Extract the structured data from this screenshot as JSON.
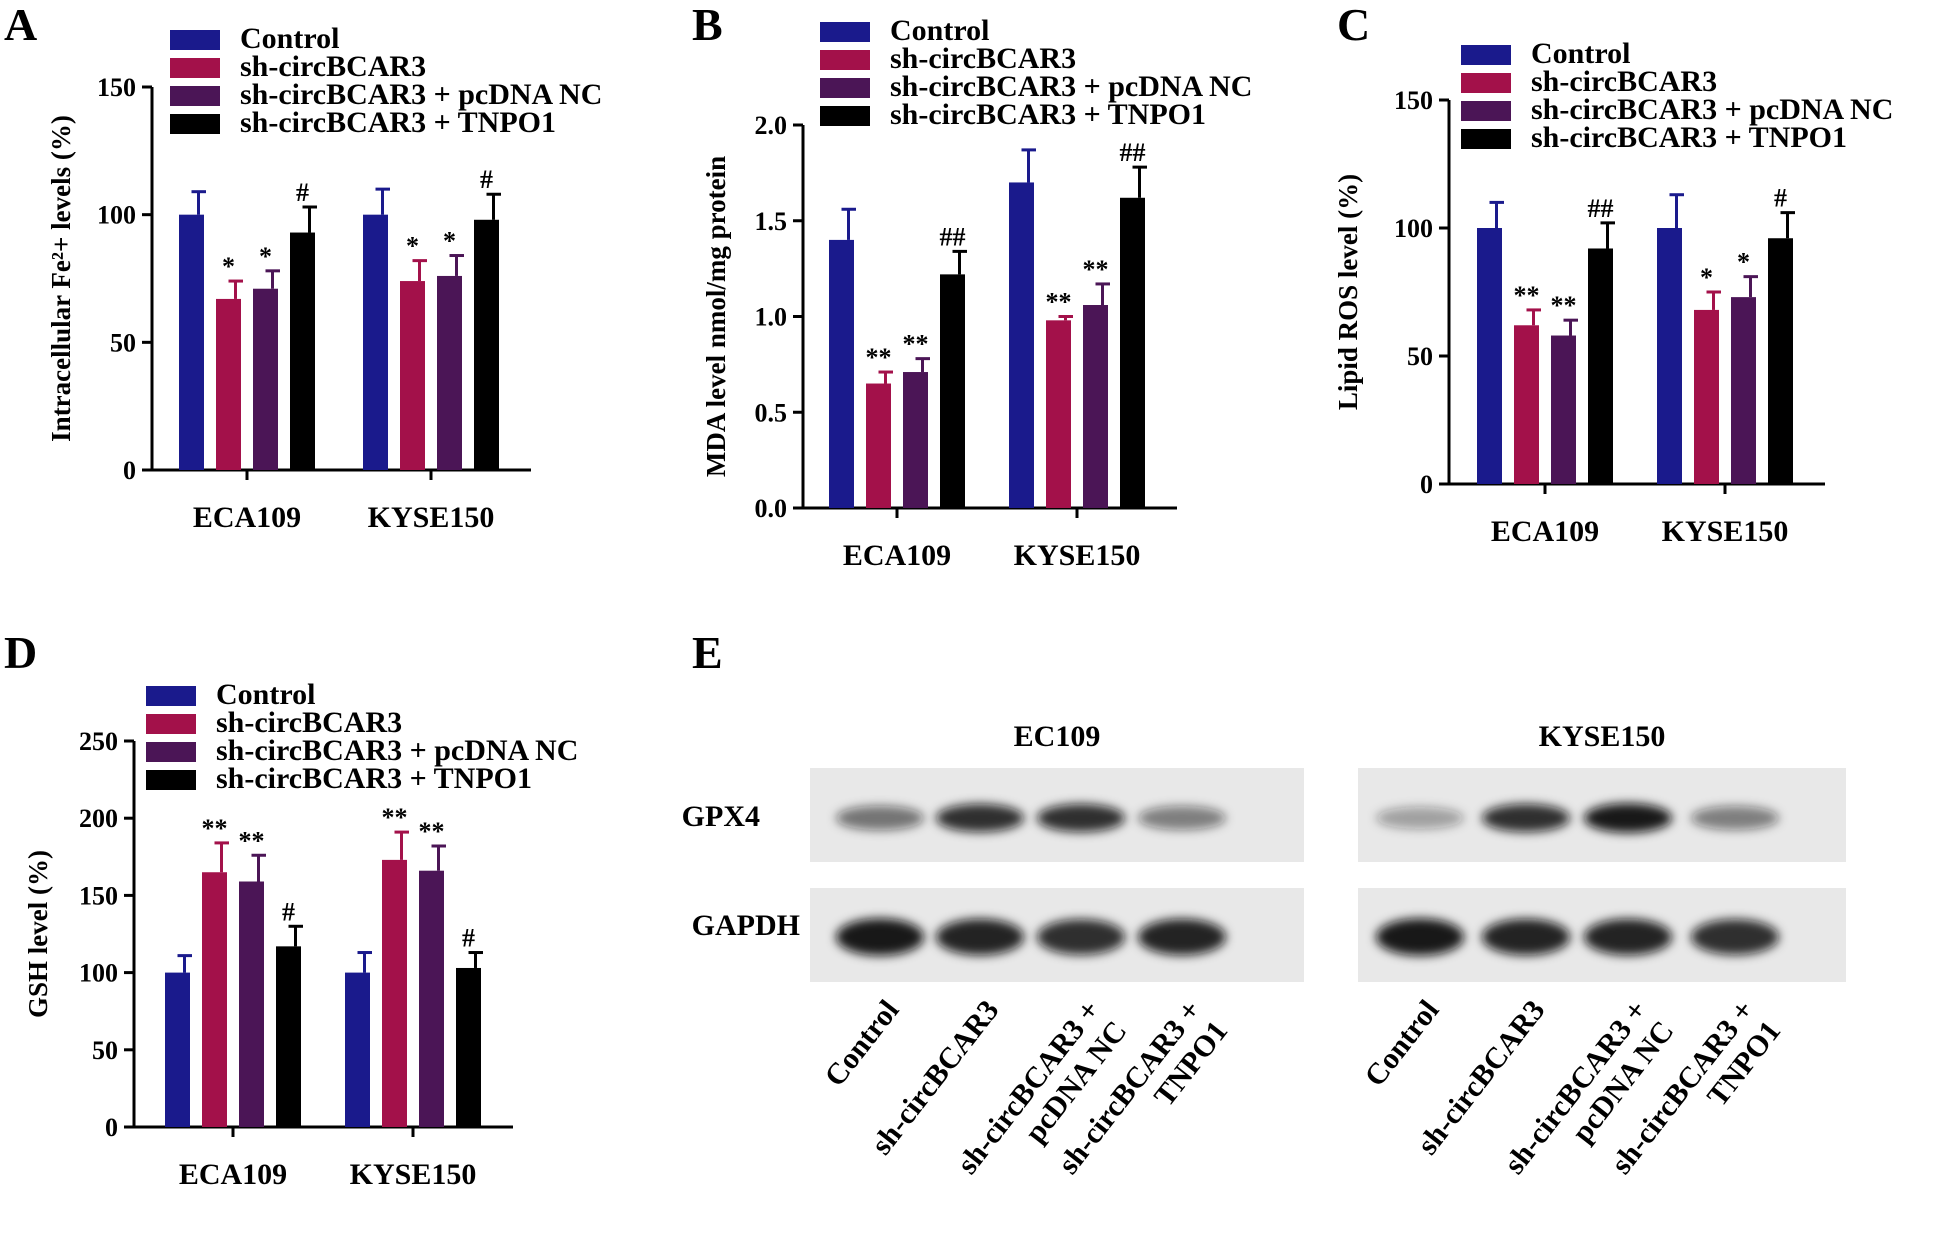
{
  "colors": {
    "Control": "#1a1a8c",
    "sh-circBCAR3": "#a3114a",
    "sh-circBCAR3 + pcDNA NC": "#4b1556",
    "sh-circBCAR3 + TNPO1": "#000000"
  },
  "chart_data": [
    {
      "panel": "A",
      "type": "bar",
      "categories": [
        "ECA109",
        "KYSE150"
      ],
      "ylabel": "Intracellular Fe²+ levels (%)",
      "ylim": [
        0,
        150
      ],
      "yticks": [
        "0",
        "50",
        "100",
        "150"
      ],
      "legend": "top",
      "series": [
        {
          "name": "Control",
          "values": [
            100,
            100
          ],
          "errors": [
            9,
            10
          ],
          "sig": [
            "",
            ""
          ]
        },
        {
          "name": "sh-circBCAR3",
          "values": [
            67,
            74
          ],
          "errors": [
            7,
            8
          ],
          "sig": [
            "*",
            "*"
          ]
        },
        {
          "name": "sh-circBCAR3 + pcDNA NC",
          "values": [
            71,
            76
          ],
          "errors": [
            7,
            8
          ],
          "sig": [
            "*",
            "*"
          ]
        },
        {
          "name": "sh-circBCAR3 + TNPO1",
          "values": [
            93,
            98
          ],
          "errors": [
            10,
            10
          ],
          "sig": [
            "#",
            "#"
          ]
        }
      ]
    },
    {
      "panel": "B",
      "type": "bar",
      "categories": [
        "ECA109",
        "KYSE150"
      ],
      "ylabel": "MDA level nmol/mg protein",
      "ylim": [
        0,
        2.0
      ],
      "yticks": [
        "0.0",
        "0.5",
        "1.0",
        "1.5",
        "2.0"
      ],
      "legend": "top",
      "series": [
        {
          "name": "Control",
          "values": [
            1.4,
            1.7
          ],
          "errors": [
            0.16,
            0.17
          ],
          "sig": [
            "",
            ""
          ]
        },
        {
          "name": "sh-circBCAR3",
          "values": [
            0.65,
            0.98
          ],
          "errors": [
            0.06,
            0.02
          ],
          "sig": [
            "**",
            "**"
          ]
        },
        {
          "name": "sh-circBCAR3 + pcDNA NC",
          "values": [
            0.71,
            1.06
          ],
          "errors": [
            0.07,
            0.11
          ],
          "sig": [
            "**",
            "**"
          ]
        },
        {
          "name": "sh-circBCAR3 + TNPO1",
          "values": [
            1.22,
            1.62
          ],
          "errors": [
            0.12,
            0.16
          ],
          "sig": [
            "##",
            "##"
          ]
        }
      ]
    },
    {
      "panel": "C",
      "type": "bar",
      "categories": [
        "ECA109",
        "KYSE150"
      ],
      "ylabel": "Lipid ROS level (%)",
      "ylim": [
        0,
        150
      ],
      "yticks": [
        "0",
        "50",
        "100",
        "150"
      ],
      "legend": "top",
      "series": [
        {
          "name": "Control",
          "values": [
            100,
            100
          ],
          "errors": [
            10,
            13
          ],
          "sig": [
            "",
            ""
          ]
        },
        {
          "name": "sh-circBCAR3",
          "values": [
            62,
            68
          ],
          "errors": [
            6,
            7
          ],
          "sig": [
            "**",
            "*"
          ]
        },
        {
          "name": "sh-circBCAR3 + pcDNA NC",
          "values": [
            58,
            73
          ],
          "errors": [
            6,
            8
          ],
          "sig": [
            "**",
            "*"
          ]
        },
        {
          "name": "sh-circBCAR3 + TNPO1",
          "values": [
            92,
            96
          ],
          "errors": [
            10,
            10
          ],
          "sig": [
            "##",
            "#"
          ]
        }
      ]
    },
    {
      "panel": "D",
      "type": "bar",
      "categories": [
        "ECA109",
        "KYSE150"
      ],
      "ylabel": "GSH level (%)",
      "ylim": [
        0,
        250
      ],
      "yticks": [
        "0",
        "50",
        "100",
        "150",
        "200",
        "250"
      ],
      "legend": "top",
      "series": [
        {
          "name": "Control",
          "values": [
            100,
            100
          ],
          "errors": [
            11,
            13
          ],
          "sig": [
            "",
            ""
          ]
        },
        {
          "name": "sh-circBCAR3",
          "values": [
            165,
            173
          ],
          "errors": [
            19,
            18
          ],
          "sig": [
            "**",
            "**"
          ]
        },
        {
          "name": "sh-circBCAR3 + pcDNA NC",
          "values": [
            159,
            166
          ],
          "errors": [
            17,
            16
          ],
          "sig": [
            "**",
            "**"
          ]
        },
        {
          "name": "sh-circBCAR3 + TNPO1",
          "values": [
            117,
            103
          ],
          "errors": [
            13,
            10
          ],
          "sig": [
            "#",
            "#"
          ]
        }
      ]
    }
  ],
  "blot": {
    "panel": "E",
    "groups": [
      {
        "title": "EC109",
        "lanes": [
          "Control",
          "sh-circBCAR3",
          "sh-circBCAR3 + pcDNA NC",
          "sh-circBCAR3 + TNPO1"
        ]
      },
      {
        "title": "KYSE150",
        "lanes": [
          "Control",
          "sh-circBCAR3",
          "sh-circBCAR3 + pcDNA NC",
          "sh-circBCAR3 + TNPO1"
        ]
      }
    ],
    "rows": [
      "GPX4",
      "GAPDH"
    ],
    "lane_labels": [
      [
        "Control"
      ],
      [
        "sh-circBCAR3"
      ],
      [
        "sh-circBCAR3 +",
        "pcDNA NC"
      ],
      [
        "sh-circBCAR3 +",
        "TNPO1"
      ]
    ],
    "gpx4_intensity": [
      [
        0.55,
        0.85,
        0.85,
        0.5
      ],
      [
        0.35,
        0.85,
        0.95,
        0.5
      ]
    ],
    "gapdh_intensity": [
      [
        0.95,
        0.9,
        0.85,
        0.9
      ],
      [
        0.95,
        0.9,
        0.9,
        0.85
      ]
    ]
  }
}
